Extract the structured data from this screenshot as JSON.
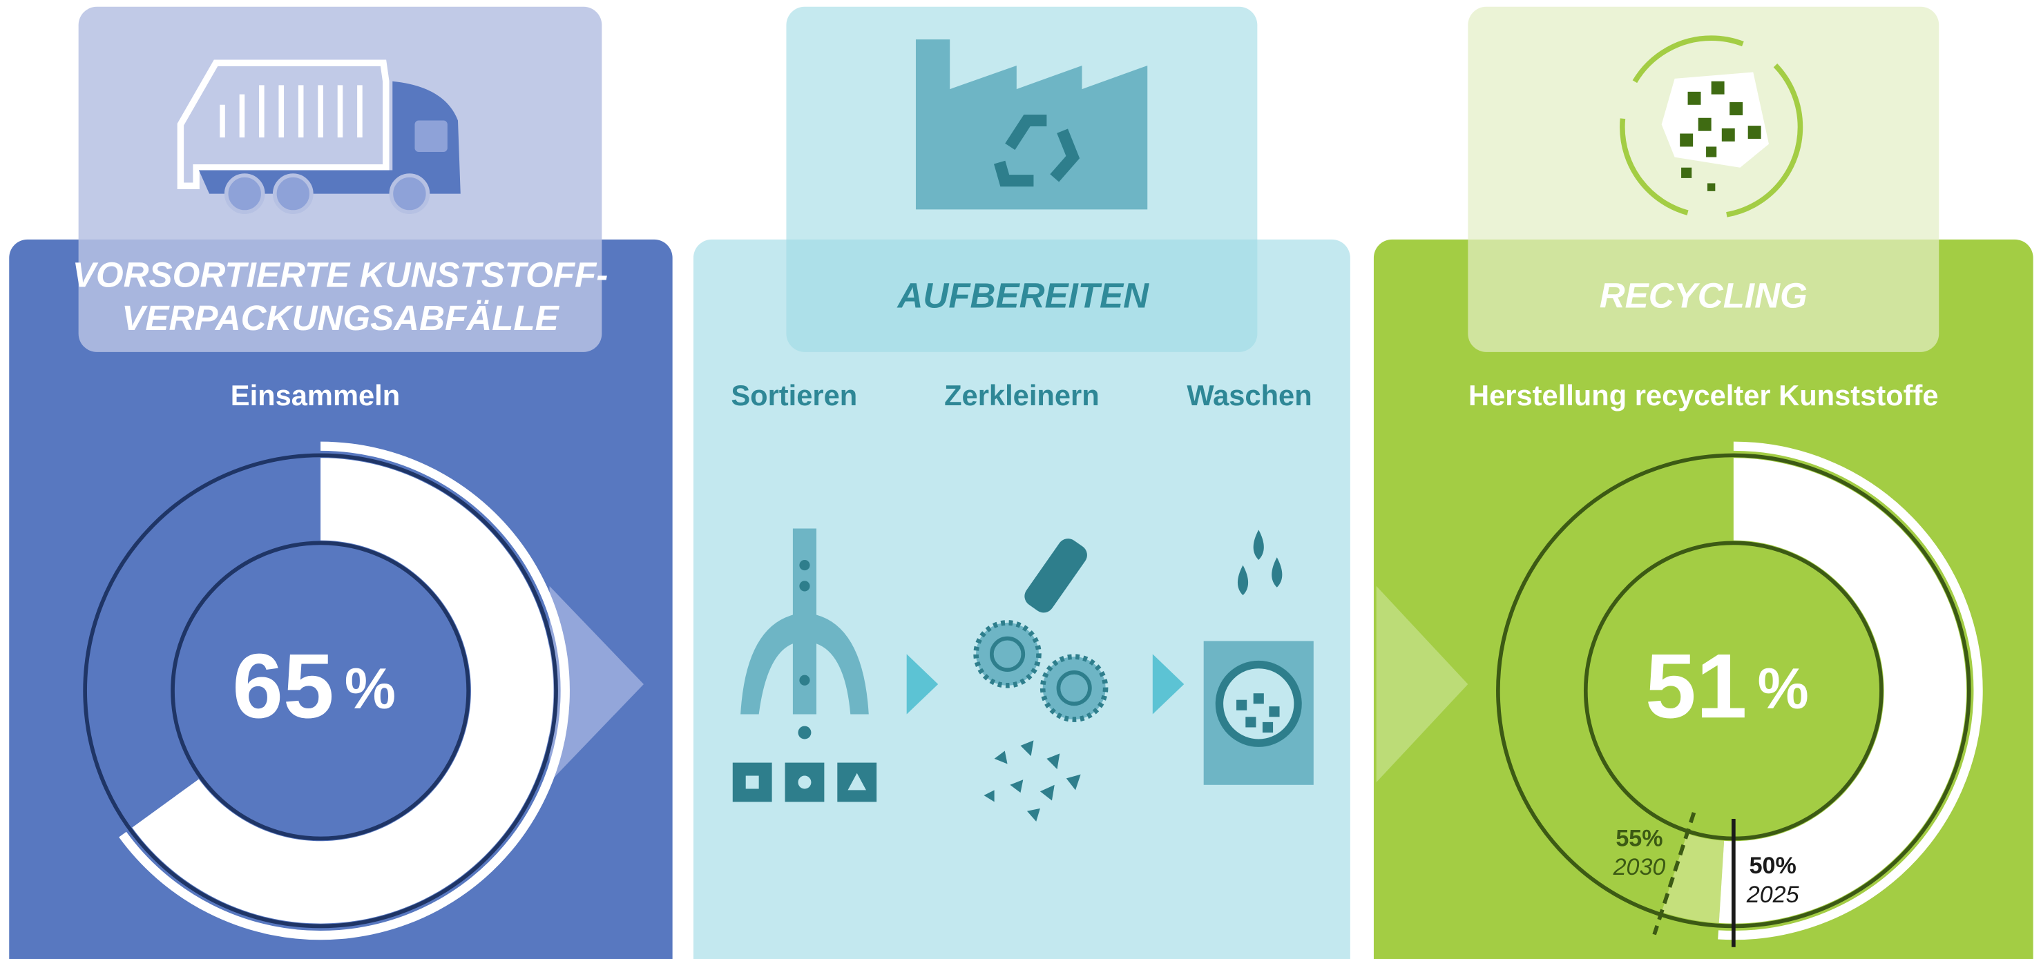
{
  "panels": [
    {
      "title_lines": [
        "VORSORTIERTE  KUNSTSTOFF-",
        "VERPACKUNGSABFÄLLE"
      ],
      "steps": [
        "Einsammeln"
      ],
      "value": 65,
      "unit": "%"
    },
    {
      "title_lines": [
        "AUFBEREITEN"
      ],
      "steps": [
        "Sortieren",
        "Zerkleinern",
        "Waschen"
      ]
    },
    {
      "title_lines": [
        "RECYCLING"
      ],
      "steps": [
        "Herstellung recycelter Kunststoffe"
      ],
      "value": 51,
      "unit": "%",
      "targets": [
        {
          "value": 55,
          "label": "55%",
          "year": "2030"
        },
        {
          "value": 50,
          "label": "50%",
          "year": "2025"
        }
      ]
    }
  ]
}
